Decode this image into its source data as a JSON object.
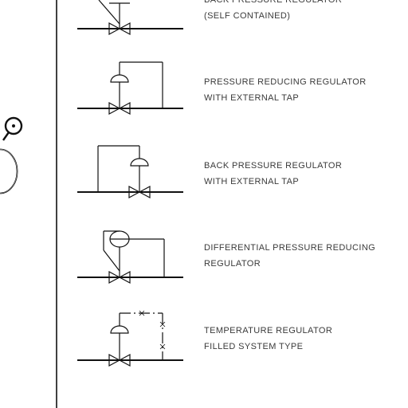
{
  "symbols": [
    {
      "id": "back-pressure-self",
      "line1": "BACK PRESSURE REGULATOR",
      "line2": "(SELF CONTAINED)"
    },
    {
      "id": "pressure-reducing-ext",
      "line1": "PRESSURE REDUCING REGULATOR",
      "line2": "WITH EXTERNAL TAP"
    },
    {
      "id": "back-pressure-ext",
      "line1": "BACK PRESSURE REGULATOR",
      "line2": "WITH EXTERNAL TAP"
    },
    {
      "id": "differential",
      "line1": "DIFFERENTIAL PRESSURE REDUCING",
      "line2": "REGULATOR"
    },
    {
      "id": "temperature",
      "line1": "TEMPERATURE REGULATOR",
      "line2": "FILLED SYSTEM TYPE"
    }
  ]
}
